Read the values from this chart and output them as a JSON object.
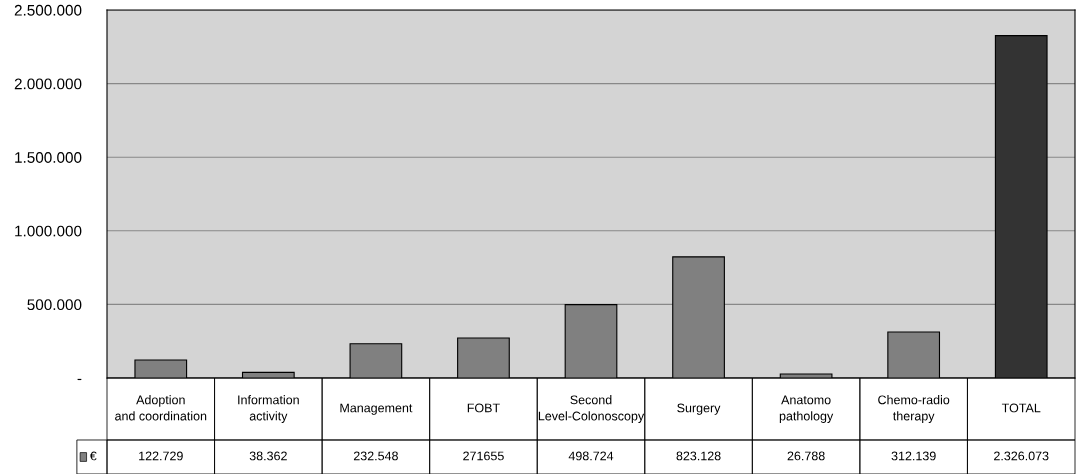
{
  "chart_data": {
    "type": "bar",
    "categories": [
      "Adoption and coordination",
      "Information activity",
      "Management",
      "FOBT",
      "Second Level-Colonoscopy",
      "Surgery",
      "Anatomo pathology",
      "Chemo-radio therapy",
      "TOTAL"
    ],
    "series": [
      {
        "name": "€",
        "color": "#808080",
        "colors": [
          "#808080",
          "#808080",
          "#808080",
          "#808080",
          "#808080",
          "#808080",
          "#808080",
          "#808080",
          "#333333"
        ],
        "values": [
          122729,
          38362,
          232548,
          271655,
          498724,
          823128,
          26788,
          312139,
          2326073
        ],
        "value_labels": [
          "122.729",
          "38.362",
          "232.548",
          "271655",
          "498.724",
          "823.128",
          "26.788",
          "312.139",
          "2.326.073"
        ]
      }
    ],
    "ylim": [
      0,
      2500000
    ],
    "yticks": [
      {
        "value": 0,
        "label": "-"
      },
      {
        "value": 500000,
        "label": "500.000"
      },
      {
        "value": 1000000,
        "label": "1.000.000"
      },
      {
        "value": 1500000,
        "label": "1.500.000"
      },
      {
        "value": 2000000,
        "label": "2.000.000"
      },
      {
        "value": 2500000,
        "label": "2.500.000"
      }
    ],
    "grid": "y",
    "legend": "bottom left"
  }
}
